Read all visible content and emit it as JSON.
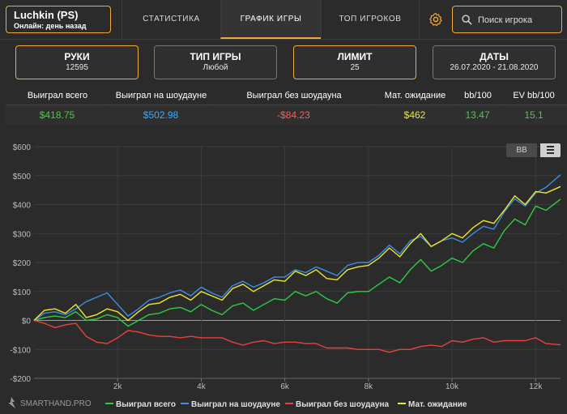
{
  "player": {
    "name": "Luchkin (PS)",
    "status": "Онлайн: день назад"
  },
  "nav": {
    "tabs": [
      "СТАТИСТИКА",
      "ГРАФИК ИГРЫ",
      "ТОП ИГРОКОВ"
    ],
    "active_tab": "ГРАФИК ИГРЫ"
  },
  "search": {
    "placeholder": "Поиск игрока"
  },
  "filters": [
    {
      "label": "РУКИ",
      "value": "12595"
    },
    {
      "label": "ТИП ИГРЫ",
      "value": "Любой"
    },
    {
      "label": "ЛИМИТ",
      "value": "25"
    },
    {
      "label": "ДАТЫ",
      "value": "26.07.2020 - 21.08.2020"
    }
  ],
  "summary": {
    "headers": [
      "Выиграл всего",
      "Выиграл на шоудауне",
      "Выиграл без шоудауна",
      "Мат. ожидание",
      "bb/100",
      "EV bb/100"
    ],
    "values": [
      "$418.75",
      "$502.98",
      "-$84.23",
      "$462",
      "13.47",
      "15.1"
    ],
    "colors": [
      "#4cc94c",
      "#3fa9f5",
      "#ff5a5a",
      "#f5e532",
      "#4cc94c",
      "#4cc94c"
    ]
  },
  "chart_controls": {
    "bb_label": "BB"
  },
  "brand": {
    "text": "SMARTHAND.PRO"
  },
  "chart_data": {
    "type": "line",
    "title": "",
    "xlabel": "",
    "ylabel": "",
    "x_range": [
      0,
      12595
    ],
    "ylim": [
      -200,
      600
    ],
    "y_ticks": [
      600,
      500,
      400,
      300,
      200,
      100,
      0,
      -100,
      -200
    ],
    "y_tick_labels": [
      "$600",
      "$500",
      "$400",
      "$300",
      "$200",
      "$100",
      "$0",
      "-$100",
      "-$200"
    ],
    "x_ticks": [
      2000,
      4000,
      6000,
      8000,
      10000,
      12000
    ],
    "x_tick_labels": [
      "2k",
      "4k",
      "6k",
      "8k",
      "10k",
      "12k"
    ],
    "grid": true,
    "legend_position": "bottom",
    "x": [
      0,
      250,
      500,
      750,
      1000,
      1250,
      1500,
      1750,
      2000,
      2250,
      2500,
      2750,
      3000,
      3250,
      3500,
      3750,
      4000,
      4250,
      4500,
      4750,
      5000,
      5250,
      5500,
      5750,
      6000,
      6250,
      6500,
      6750,
      7000,
      7250,
      7500,
      7750,
      8000,
      8250,
      8500,
      8750,
      9000,
      9250,
      9500,
      9750,
      10000,
      10250,
      10500,
      10750,
      11000,
      11250,
      11500,
      11750,
      12000,
      12250,
      12595
    ],
    "series": [
      {
        "name": "Выиграл всего",
        "color": "#2ecc40",
        "values": [
          0,
          10,
          15,
          10,
          30,
          0,
          5,
          20,
          10,
          -20,
          0,
          20,
          25,
          40,
          45,
          30,
          55,
          35,
          20,
          50,
          60,
          35,
          55,
          75,
          70,
          100,
          85,
          100,
          75,
          60,
          95,
          100,
          100,
          125,
          150,
          130,
          175,
          210,
          170,
          190,
          215,
          200,
          240,
          265,
          250,
          310,
          350,
          330,
          395,
          380,
          418.75
        ]
      },
      {
        "name": "Выиграл на шоудауне",
        "color": "#3b8fe8",
        "values": [
          0,
          25,
          30,
          20,
          40,
          65,
          80,
          95,
          55,
          15,
          40,
          70,
          80,
          95,
          105,
          85,
          115,
          95,
          80,
          120,
          135,
          115,
          130,
          150,
          150,
          175,
          165,
          185,
          170,
          155,
          190,
          200,
          200,
          225,
          260,
          230,
          275,
          290,
          255,
          275,
          285,
          270,
          300,
          325,
          315,
          375,
          420,
          395,
          440,
          460,
          502.98
        ]
      },
      {
        "name": "Выиграл без шоудауна",
        "color": "#e8413c",
        "values": [
          0,
          -10,
          -25,
          -15,
          -10,
          -55,
          -75,
          -80,
          -60,
          -35,
          -40,
          -50,
          -55,
          -55,
          -60,
          -55,
          -60,
          -60,
          -60,
          -75,
          -85,
          -75,
          -70,
          -80,
          -75,
          -75,
          -80,
          -80,
          -95,
          -95,
          -95,
          -100,
          -100,
          -100,
          -110,
          -100,
          -100,
          -90,
          -85,
          -90,
          -70,
          -75,
          -65,
          -60,
          -75,
          -70,
          -70,
          -70,
          -60,
          -80,
          -84.23
        ]
      },
      {
        "name": "Мат. ожидание",
        "color": "#f0e62a",
        "values": [
          0,
          35,
          40,
          25,
          55,
          10,
          20,
          40,
          30,
          0,
          30,
          55,
          60,
          80,
          90,
          70,
          100,
          85,
          70,
          110,
          125,
          100,
          120,
          140,
          135,
          170,
          155,
          175,
          145,
          140,
          175,
          185,
          190,
          215,
          250,
          220,
          265,
          300,
          255,
          275,
          300,
          285,
          320,
          345,
          335,
          380,
          430,
          400,
          445,
          440,
          462
        ]
      }
    ]
  }
}
